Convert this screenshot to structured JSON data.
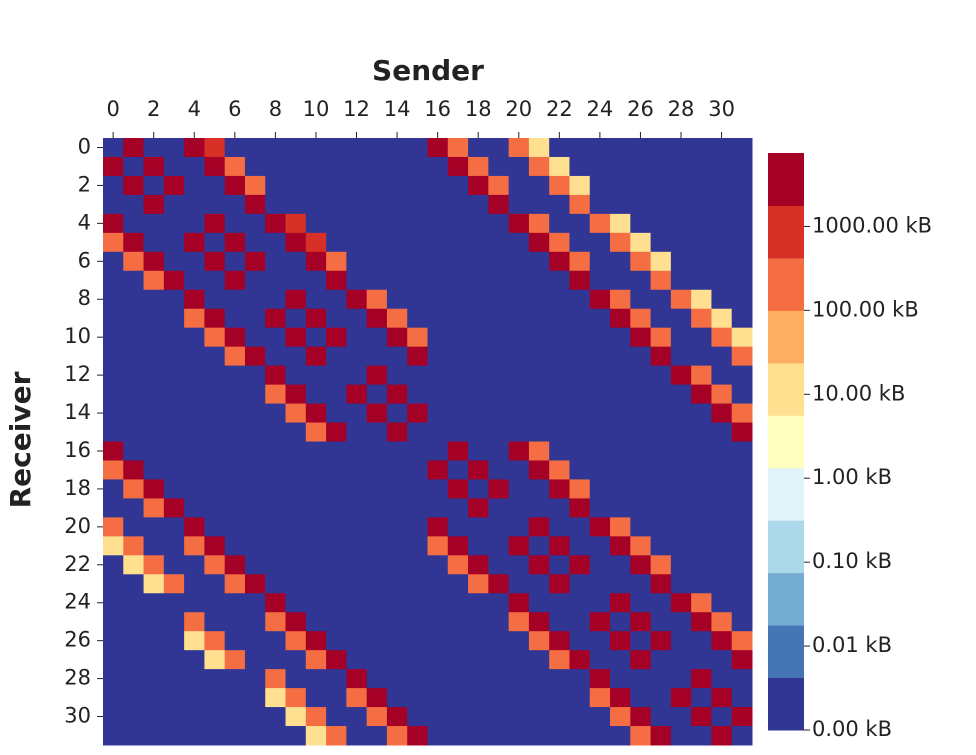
{
  "chart_data": {
    "type": "heatmap",
    "x_label": "Sender",
    "y_label": "Receiver",
    "x": [
      0,
      null,
      2,
      null,
      4,
      null,
      6,
      null,
      8,
      null,
      10,
      null,
      12,
      null,
      14,
      null,
      16,
      null,
      18,
      null,
      20,
      null,
      22,
      null,
      24,
      null,
      26,
      null,
      28,
      null,
      30,
      null
    ],
    "y": [
      0,
      null,
      2,
      null,
      4,
      null,
      6,
      null,
      8,
      null,
      10,
      null,
      12,
      null,
      14,
      null,
      16,
      null,
      18,
      null,
      20,
      null,
      22,
      null,
      24,
      null,
      26,
      null,
      28,
      null,
      30,
      null
    ],
    "z": [
      [
        0,
        3000,
        0,
        0,
        3000,
        1000,
        0,
        0,
        0,
        0,
        0,
        0,
        0,
        0,
        0,
        0,
        3000,
        200,
        0,
        0,
        200,
        10,
        0,
        0,
        0,
        0,
        0,
        0,
        0,
        0,
        0,
        0
      ],
      [
        3000,
        0,
        3000,
        0,
        0,
        3000,
        200,
        0,
        0,
        0,
        0,
        0,
        0,
        0,
        0,
        0,
        0,
        3000,
        200,
        0,
        0,
        200,
        10,
        0,
        0,
        0,
        0,
        0,
        0,
        0,
        0,
        0
      ],
      [
        0,
        3000,
        0,
        3000,
        0,
        0,
        3000,
        200,
        0,
        0,
        0,
        0,
        0,
        0,
        0,
        0,
        0,
        0,
        3000,
        200,
        0,
        0,
        200,
        10,
        0,
        0,
        0,
        0,
        0,
        0,
        0,
        0
      ],
      [
        0,
        0,
        3000,
        0,
        0,
        0,
        0,
        3000,
        0,
        0,
        0,
        0,
        0,
        0,
        0,
        0,
        0,
        0,
        0,
        3000,
        0,
        0,
        0,
        200,
        0,
        0,
        0,
        0,
        0,
        0,
        0,
        0
      ],
      [
        3000,
        0,
        0,
        0,
        0,
        3000,
        0,
        0,
        3000,
        1000,
        0,
        0,
        0,
        0,
        0,
        0,
        0,
        0,
        0,
        0,
        3000,
        200,
        0,
        0,
        200,
        10,
        0,
        0,
        0,
        0,
        0,
        0
      ],
      [
        200,
        3000,
        0,
        0,
        3000,
        0,
        3000,
        0,
        0,
        3000,
        1000,
        0,
        0,
        0,
        0,
        0,
        0,
        0,
        0,
        0,
        0,
        3000,
        200,
        0,
        0,
        200,
        10,
        0,
        0,
        0,
        0,
        0
      ],
      [
        0,
        200,
        3000,
        0,
        0,
        3000,
        0,
        3000,
        0,
        0,
        3000,
        200,
        0,
        0,
        0,
        0,
        0,
        0,
        0,
        0,
        0,
        0,
        3000,
        200,
        0,
        0,
        200,
        10,
        0,
        0,
        0,
        0
      ],
      [
        0,
        0,
        200,
        3000,
        0,
        0,
        3000,
        0,
        0,
        0,
        0,
        3000,
        0,
        0,
        0,
        0,
        0,
        0,
        0,
        0,
        0,
        0,
        0,
        3000,
        0,
        0,
        0,
        200,
        0,
        0,
        0,
        0
      ],
      [
        0,
        0,
        0,
        0,
        3000,
        0,
        0,
        0,
        0,
        3000,
        0,
        0,
        3000,
        200,
        0,
        0,
        0,
        0,
        0,
        0,
        0,
        0,
        0,
        0,
        3000,
        200,
        0,
        0,
        200,
        10,
        0,
        0
      ],
      [
        0,
        0,
        0,
        0,
        200,
        3000,
        0,
        0,
        3000,
        0,
        3000,
        0,
        0,
        3000,
        200,
        0,
        0,
        0,
        0,
        0,
        0,
        0,
        0,
        0,
        0,
        3000,
        200,
        0,
        0,
        200,
        10,
        0
      ],
      [
        0,
        0,
        0,
        0,
        0,
        200,
        3000,
        0,
        0,
        3000,
        0,
        3000,
        0,
        0,
        3000,
        200,
        0,
        0,
        0,
        0,
        0,
        0,
        0,
        0,
        0,
        0,
        3000,
        200,
        0,
        0,
        200,
        10
      ],
      [
        0,
        0,
        0,
        0,
        0,
        0,
        200,
        3000,
        0,
        0,
        3000,
        0,
        0,
        0,
        0,
        3000,
        0,
        0,
        0,
        0,
        0,
        0,
        0,
        0,
        0,
        0,
        0,
        3000,
        0,
        0,
        0,
        200
      ],
      [
        0,
        0,
        0,
        0,
        0,
        0,
        0,
        0,
        3000,
        0,
        0,
        0,
        0,
        3000,
        0,
        0,
        0,
        0,
        0,
        0,
        0,
        0,
        0,
        0,
        0,
        0,
        0,
        0,
        3000,
        200,
        0,
        0
      ],
      [
        0,
        0,
        0,
        0,
        0,
        0,
        0,
        0,
        200,
        3000,
        0,
        0,
        3000,
        0,
        3000,
        0,
        0,
        0,
        0,
        0,
        0,
        0,
        0,
        0,
        0,
        0,
        0,
        0,
        0,
        3000,
        200,
        0
      ],
      [
        0,
        0,
        0,
        0,
        0,
        0,
        0,
        0,
        0,
        200,
        3000,
        0,
        0,
        3000,
        0,
        3000,
        0,
        0,
        0,
        0,
        0,
        0,
        0,
        0,
        0,
        0,
        0,
        0,
        0,
        0,
        3000,
        200
      ],
      [
        0,
        0,
        0,
        0,
        0,
        0,
        0,
        0,
        0,
        0,
        200,
        3000,
        0,
        0,
        3000,
        0,
        0,
        0,
        0,
        0,
        0,
        0,
        0,
        0,
        0,
        0,
        0,
        0,
        0,
        0,
        0,
        3000
      ],
      [
        3000,
        0,
        0,
        0,
        0,
        0,
        0,
        0,
        0,
        0,
        0,
        0,
        0,
        0,
        0,
        0,
        0,
        3000,
        0,
        0,
        3000,
        200,
        0,
        0,
        0,
        0,
        0,
        0,
        0,
        0,
        0,
        0
      ],
      [
        200,
        3000,
        0,
        0,
        0,
        0,
        0,
        0,
        0,
        0,
        0,
        0,
        0,
        0,
        0,
        0,
        3000,
        0,
        3000,
        0,
        0,
        3000,
        200,
        0,
        0,
        0,
        0,
        0,
        0,
        0,
        0,
        0
      ],
      [
        0,
        200,
        3000,
        0,
        0,
        0,
        0,
        0,
        0,
        0,
        0,
        0,
        0,
        0,
        0,
        0,
        0,
        3000,
        0,
        3000,
        0,
        0,
        3000,
        200,
        0,
        0,
        0,
        0,
        0,
        0,
        0,
        0
      ],
      [
        0,
        0,
        200,
        3000,
        0,
        0,
        0,
        0,
        0,
        0,
        0,
        0,
        0,
        0,
        0,
        0,
        0,
        0,
        3000,
        0,
        0,
        0,
        0,
        3000,
        0,
        0,
        0,
        0,
        0,
        0,
        0,
        0
      ],
      [
        200,
        0,
        0,
        0,
        3000,
        0,
        0,
        0,
        0,
        0,
        0,
        0,
        0,
        0,
        0,
        0,
        3000,
        0,
        0,
        0,
        0,
        3000,
        0,
        0,
        3000,
        200,
        0,
        0,
        0,
        0,
        0,
        0
      ],
      [
        10,
        200,
        0,
        0,
        200,
        3000,
        0,
        0,
        0,
        0,
        0,
        0,
        0,
        0,
        0,
        0,
        200,
        3000,
        0,
        0,
        3000,
        0,
        3000,
        0,
        0,
        3000,
        200,
        0,
        0,
        0,
        0,
        0
      ],
      [
        0,
        10,
        200,
        0,
        0,
        200,
        3000,
        0,
        0,
        0,
        0,
        0,
        0,
        0,
        0,
        0,
        0,
        200,
        3000,
        0,
        0,
        3000,
        0,
        3000,
        0,
        0,
        3000,
        200,
        0,
        0,
        0,
        0
      ],
      [
        0,
        0,
        10,
        200,
        0,
        0,
        200,
        3000,
        0,
        0,
        0,
        0,
        0,
        0,
        0,
        0,
        0,
        0,
        200,
        3000,
        0,
        0,
        3000,
        0,
        0,
        0,
        0,
        3000,
        0,
        0,
        0,
        0
      ],
      [
        0,
        0,
        0,
        0,
        0,
        0,
        0,
        0,
        3000,
        0,
        0,
        0,
        0,
        0,
        0,
        0,
        0,
        0,
        0,
        0,
        3000,
        0,
        0,
        0,
        0,
        3000,
        0,
        0,
        3000,
        200,
        0,
        0
      ],
      [
        0,
        0,
        0,
        0,
        200,
        0,
        0,
        0,
        200,
        3000,
        0,
        0,
        0,
        0,
        0,
        0,
        0,
        0,
        0,
        0,
        200,
        3000,
        0,
        0,
        3000,
        0,
        3000,
        0,
        0,
        3000,
        200,
        0
      ],
      [
        0,
        0,
        0,
        0,
        10,
        200,
        0,
        0,
        0,
        200,
        3000,
        0,
        0,
        0,
        0,
        0,
        0,
        0,
        0,
        0,
        0,
        200,
        3000,
        0,
        0,
        3000,
        0,
        3000,
        0,
        0,
        3000,
        200
      ],
      [
        0,
        0,
        0,
        0,
        0,
        10,
        200,
        0,
        0,
        0,
        200,
        3000,
        0,
        0,
        0,
        0,
        0,
        0,
        0,
        0,
        0,
        0,
        200,
        3000,
        0,
        0,
        3000,
        0,
        0,
        0,
        0,
        3000
      ],
      [
        0,
        0,
        0,
        0,
        0,
        0,
        0,
        0,
        200,
        0,
        0,
        0,
        3000,
        0,
        0,
        0,
        0,
        0,
        0,
        0,
        0,
        0,
        0,
        0,
        3000,
        0,
        0,
        0,
        0,
        3000,
        0,
        0
      ],
      [
        0,
        0,
        0,
        0,
        0,
        0,
        0,
        0,
        10,
        200,
        0,
        0,
        200,
        3000,
        0,
        0,
        0,
        0,
        0,
        0,
        0,
        0,
        0,
        0,
        200,
        3000,
        0,
        0,
        3000,
        0,
        3000,
        0
      ],
      [
        0,
        0,
        0,
        0,
        0,
        0,
        0,
        0,
        0,
        10,
        200,
        0,
        0,
        200,
        3000,
        0,
        0,
        0,
        0,
        0,
        0,
        0,
        0,
        0,
        0,
        200,
        3000,
        0,
        0,
        3000,
        0,
        3000
      ],
      [
        0,
        0,
        0,
        0,
        0,
        0,
        0,
        0,
        0,
        0,
        10,
        200,
        0,
        0,
        200,
        3000,
        0,
        0,
        0,
        0,
        0,
        0,
        0,
        0,
        0,
        0,
        200,
        3000,
        0,
        0,
        3000,
        0
      ]
    ],
    "zlim": [
      0.001,
      7499
    ],
    "log_scale": true,
    "colors": [
      "#313695",
      "#4575b4",
      "#74add1",
      "#abd9e9",
      "#e0f3f8",
      "#ffffbf",
      "#fee090",
      "#fdae61",
      "#f46d43",
      "#d73027",
      "#a50026"
    ],
    "zticks": [
      {
        "value": 0.001,
        "label": "0.00 kB"
      },
      {
        "value": 0.01,
        "label": "0.01 kB"
      },
      {
        "value": 0.1,
        "label": "0.10 kB"
      },
      {
        "value": 1,
        "label": "1.00 kB"
      },
      {
        "value": 10,
        "label": "10.00 kB"
      },
      {
        "value": 100,
        "label": "100.00 kB"
      },
      {
        "value": 1000,
        "label": "1000.00 kB"
      }
    ]
  }
}
